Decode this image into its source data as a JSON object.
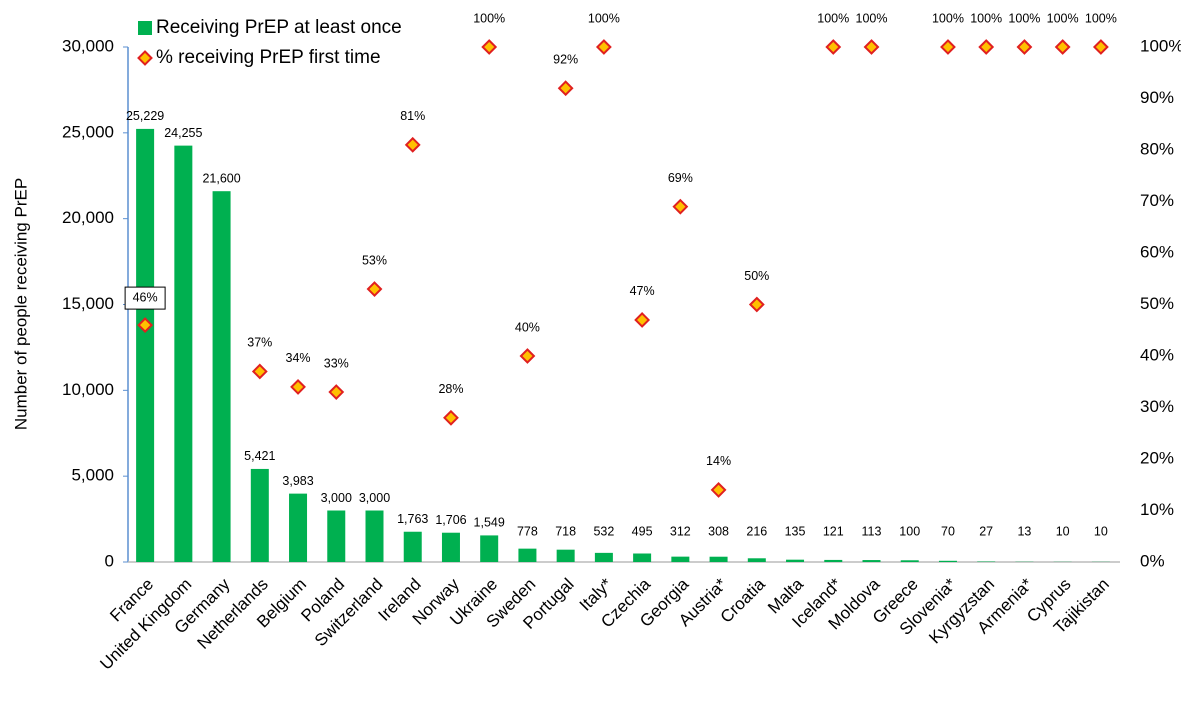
{
  "chart_data": {
    "type": "bar",
    "y_label": "Number of people receiving PrEP",
    "categories": [
      "France",
      "United Kingdom",
      "Germany",
      "Netherlands",
      "Belgium",
      "Poland",
      "Switzerland",
      "Ireland",
      "Norway",
      "Ukraine",
      "Sweden",
      "Portugal",
      "Italy*",
      "Czechia",
      "Georgia",
      "Austria*",
      "Croatia",
      "Malta",
      "Iceland*",
      "Moldova",
      "Greece",
      "Slovenia*",
      "Kyrgyzstan",
      "Armenia*",
      "Cyprus",
      "Tajikistan"
    ],
    "series": [
      {
        "name": "Receiving PrEP at least once",
        "type": "bar",
        "color": "#00b050",
        "values": [
          25229,
          24255,
          21600,
          5421,
          3983,
          3000,
          3000,
          1763,
          1706,
          1549,
          778,
          718,
          532,
          495,
          312,
          308,
          216,
          135,
          121,
          113,
          100,
          70,
          27,
          13,
          10,
          10
        ],
        "value_labels": [
          "25,229",
          "24,255",
          "21,600",
          "5,421",
          "3,983",
          "3,000",
          "3,000",
          "1,763",
          "1,706",
          "1,549",
          "778",
          "718",
          "532",
          "495",
          "312",
          "308",
          "216",
          "135",
          "121",
          "113",
          "100",
          "70",
          "27",
          "13",
          "10",
          "10"
        ]
      },
      {
        "name": "% receiving PrEP first time",
        "type": "scatter",
        "axis": "y2",
        "color": "#ffc000",
        "edge_color": "#e02020",
        "values": [
          46,
          null,
          null,
          37,
          34,
          33,
          53,
          81,
          28,
          100,
          40,
          92,
          100,
          47,
          69,
          14,
          50,
          null,
          100,
          100,
          null,
          100,
          100,
          100,
          100,
          100
        ],
        "value_labels": [
          "46%",
          null,
          null,
          "37%",
          "34%",
          "33%",
          "53%",
          "81%",
          "28%",
          "100%",
          "40%",
          "92%",
          "100%",
          "47%",
          "69%",
          "14%",
          "50%",
          null,
          "100%",
          "100%",
          null,
          "100%",
          "100%",
          "100%",
          "100%",
          "100%"
        ]
      }
    ],
    "ylim": [
      0,
      30000
    ],
    "yticks": [
      0,
      {
        "value": 5000,
        "label": "5,000"
      },
      {
        "value": 10000,
        "label": "10,000"
      },
      {
        "value": 15000,
        "label": "15,000"
      },
      {
        "value": 20000,
        "label": "20,000"
      },
      {
        "value": 25000,
        "label": "25,000"
      },
      {
        "value": 30000,
        "label": "30,000"
      }
    ],
    "y2lim": [
      0,
      100
    ],
    "y2ticks": [
      {
        "value": 0,
        "label": "0%"
      },
      {
        "value": 10,
        "label": "10%"
      },
      {
        "value": 20,
        "label": "20%"
      },
      {
        "value": 30,
        "label": "30%"
      },
      {
        "value": 40,
        "label": "40%"
      },
      {
        "value": 50,
        "label": "50%"
      },
      {
        "value": 60,
        "label": "60%"
      },
      {
        "value": 70,
        "label": "70%"
      },
      {
        "value": 80,
        "label": "80%"
      },
      {
        "value": 90,
        "label": "90%"
      },
      {
        "value": 100,
        "label": "100%"
      }
    ],
    "legend": "top-left",
    "grid": false
  }
}
